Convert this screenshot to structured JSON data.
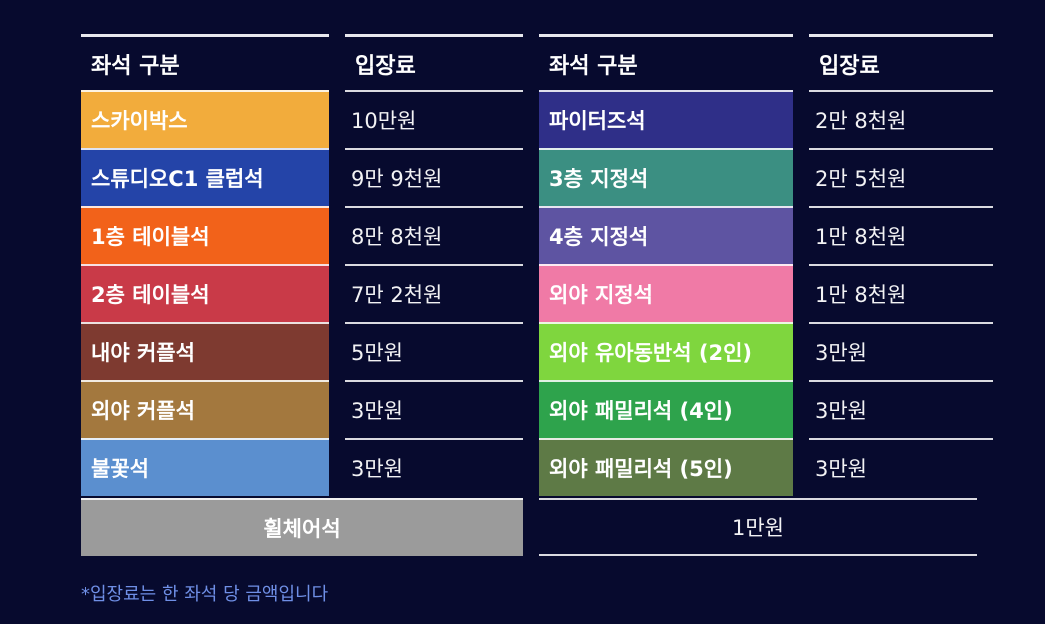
{
  "header": {
    "seat": "좌석 구분",
    "price": "입장료"
  },
  "left": [
    {
      "seat": "스카이박스",
      "price": "10만원",
      "color": "#f2ac3c"
    },
    {
      "seat": "스튜디오C1 클럽석",
      "price": "9만 9천원",
      "color": "#2444a8"
    },
    {
      "seat": "1층 테이블석",
      "price": "8만 8천원",
      "color": "#f2621a"
    },
    {
      "seat": "2층 테이블석",
      "price": "7만 2천원",
      "color": "#c93a48"
    },
    {
      "seat": "내야 커플석",
      "price": "5만원",
      "color": "#7e3a30"
    },
    {
      "seat": "외야 커플석",
      "price": "3만원",
      "color": "#a3783e"
    },
    {
      "seat": "불꽃석",
      "price": "3만원",
      "color": "#5b8fcf"
    }
  ],
  "right": [
    {
      "seat": "파이터즈석",
      "price": "2만 8천원",
      "color": "#2f2f88"
    },
    {
      "seat": "3층 지정석",
      "price": "2만 5천원",
      "color": "#3b8f82"
    },
    {
      "seat": "4층 지정석",
      "price": "1만 8천원",
      "color": "#5e54a2"
    },
    {
      "seat": "외야 지정석",
      "price": "1만 8천원",
      "color": "#f07aa6"
    },
    {
      "seat": "외야 유아동반석 (2인)",
      "price": "3만원",
      "color": "#7fd63e"
    },
    {
      "seat": "외야 패밀리석 (4인)",
      "price": "3만원",
      "color": "#2ea34c"
    },
    {
      "seat": "외야 패밀리석 (5인)",
      "price": "3만원",
      "color": "#5e7a46"
    }
  ],
  "bottom": {
    "seat": "휠체어석",
    "price": "1만원",
    "color": "#9b9b9b"
  },
  "footnote": "*입장료는 한 좌석 당 금액입니다"
}
